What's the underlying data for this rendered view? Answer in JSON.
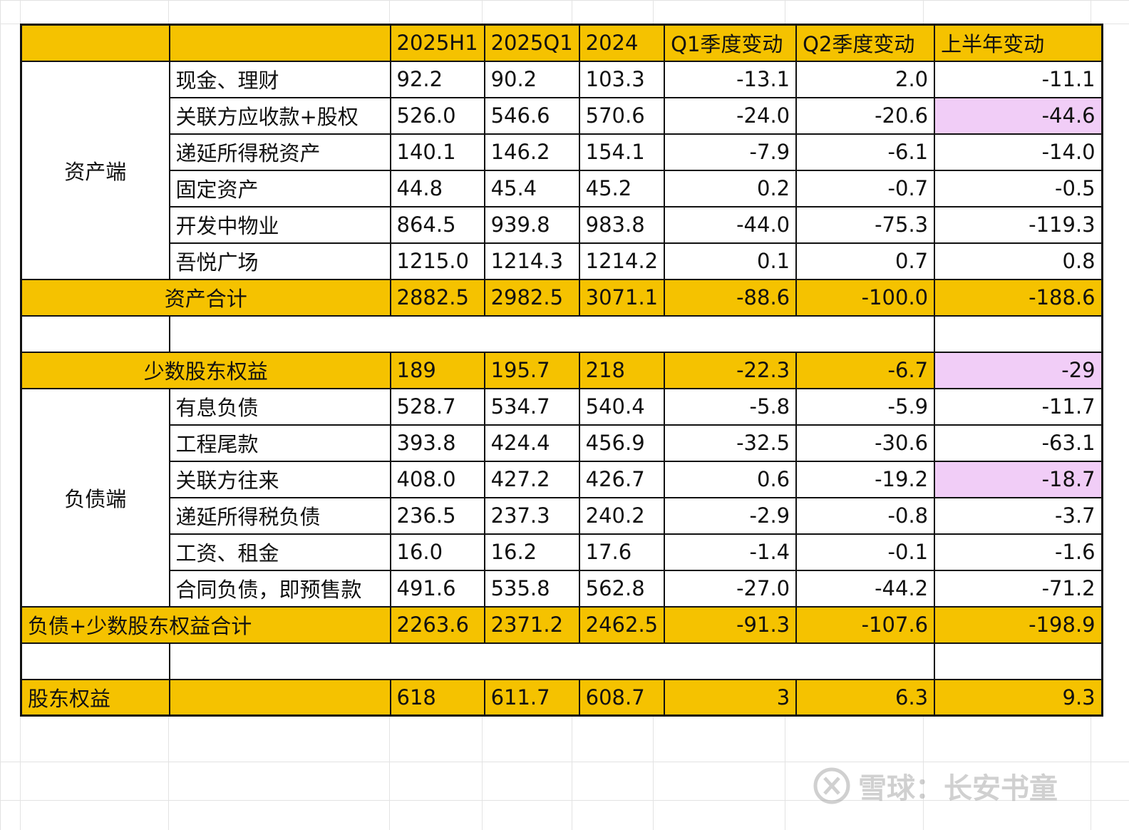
{
  "header": {
    "cols": [
      "2025H1",
      "2025Q1",
      "2024",
      "Q1季度变动",
      "Q2季度变动",
      "上半年变动"
    ]
  },
  "assets": {
    "group_label": "资产端",
    "rows": [
      {
        "label": "现金、理财",
        "values": [
          "92.2",
          "90.2",
          "103.3",
          "-13.1",
          "2.0",
          "-11.1"
        ]
      },
      {
        "label": "关联方应收款+股权",
        "values": [
          "526.0",
          "546.6",
          "570.6",
          "-24.0",
          "-20.6",
          "-44.6"
        ]
      },
      {
        "label": "递延所得税资产",
        "values": [
          "140.1",
          "146.2",
          "154.1",
          "-7.9",
          "-6.1",
          "-14.0"
        ]
      },
      {
        "label": "固定资产",
        "values": [
          "44.8",
          "45.4",
          "45.2",
          "0.2",
          "-0.7",
          "-0.5"
        ]
      },
      {
        "label": "开发中物业",
        "values": [
          "864.5",
          "939.8",
          "983.8",
          "-44.0",
          "-75.3",
          "-119.3"
        ]
      },
      {
        "label": "吾悦广场",
        "values": [
          "1215.0",
          "1214.3",
          "1214.2",
          "0.1",
          "0.7",
          "0.8"
        ]
      }
    ],
    "total": {
      "label": "资产合计",
      "values": [
        "2882.5",
        "2982.5",
        "3071.1",
        "-88.6",
        "-100.0",
        "-188.6"
      ]
    }
  },
  "minority": {
    "label": "少数股东权益",
    "values": [
      "189",
      "195.7",
      "218",
      "-22.3",
      "-6.7",
      "-29"
    ]
  },
  "liabilities": {
    "group_label": "负债端",
    "rows": [
      {
        "label": "有息负债",
        "values": [
          "528.7",
          "534.7",
          "540.4",
          "-5.8",
          "-5.9",
          "-11.7"
        ]
      },
      {
        "label": "工程尾款",
        "values": [
          "393.8",
          "424.4",
          "456.9",
          "-32.5",
          "-30.6",
          "-63.1"
        ]
      },
      {
        "label": "关联方往来",
        "values": [
          "408.0",
          "427.2",
          "426.7",
          "0.6",
          "-19.2",
          "-18.7"
        ]
      },
      {
        "label": "递延所得税负债",
        "values": [
          "236.5",
          "237.3",
          "240.2",
          "-2.9",
          "-0.8",
          "-3.7"
        ]
      },
      {
        "label": "工资、租金",
        "values": [
          "16.0",
          "16.2",
          "17.6",
          "-1.4",
          "-0.1",
          "-1.6"
        ]
      },
      {
        "label": "合同负债，即预售款",
        "values": [
          "491.6",
          "535.8",
          "562.8",
          "-27.0",
          "-44.2",
          "-71.2"
        ]
      }
    ],
    "total": {
      "label": "负债+少数股东权益合计",
      "values": [
        "2263.6",
        "2371.2",
        "2462.5",
        "-91.3",
        "-107.6",
        "-198.9"
      ]
    }
  },
  "equity": {
    "label": "股东权益",
    "values": [
      "618",
      "611.7",
      "608.7",
      "3",
      "6.3",
      "9.3"
    ]
  },
  "colors": {
    "highlight": "#f5c200",
    "pink": "#f1cdf7"
  },
  "watermark": {
    "text": "雪球：长安书童",
    "icon": "xueqiu-logo-icon"
  }
}
